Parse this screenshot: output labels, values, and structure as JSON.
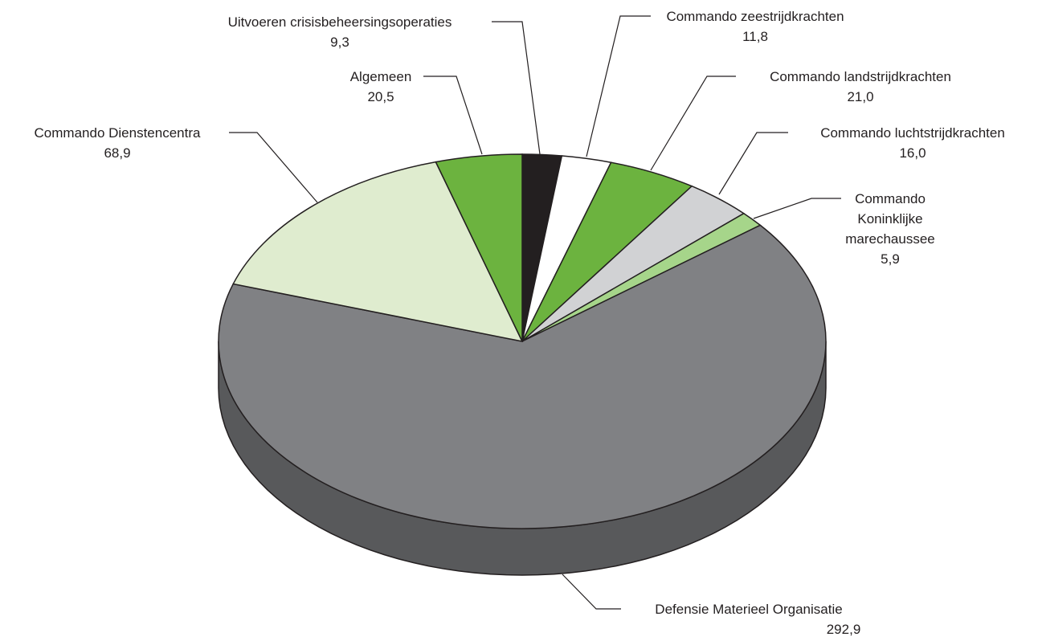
{
  "chart_data": {
    "type": "pie3d",
    "categories": [
      "Uitvoeren crisisbeheersingsoperaties",
      "Commando zeestrijdkrachten",
      "Commando landstrijdkrachten",
      "Commando luchtstrijdkrachten",
      "Commando Koninklijke marechaussee",
      "Defensie Materieel Organisatie",
      "Commando Dienstencentra",
      "Algemeen"
    ],
    "values": [
      9.3,
      11.8,
      21.0,
      16.0,
      5.9,
      292.9,
      68.9,
      20.5
    ],
    "value_labels": [
      "9,3",
      "11,8",
      "21,0",
      "16,0",
      "5,9",
      "292,9",
      "68,9",
      "20,5"
    ],
    "colors": [
      "#231f20",
      "#ffffff",
      "#6cb33f",
      "#d1d2d4",
      "#a6d58a",
      "#808184",
      "#dfeccf",
      "#6cb33f"
    ]
  }
}
